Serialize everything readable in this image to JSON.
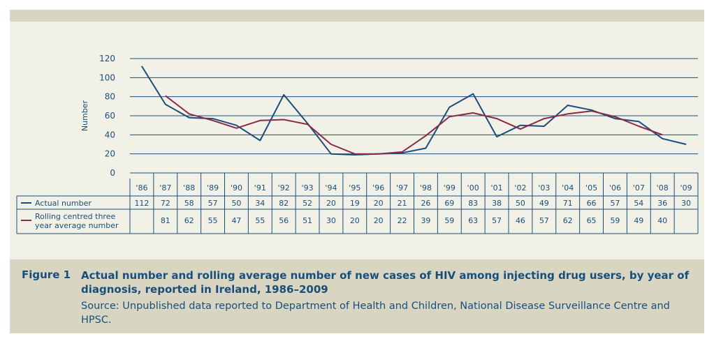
{
  "figure": {
    "label": "Figure 1",
    "title": "Actual number and rolling average number of new cases of HIV among injecting drug users, by year of diagnosis, reported in Ireland, 1986–2009",
    "source": "Source: Unpublished data reported to Department of Health and Children, National Disease Surveillance Centre and HPSC."
  },
  "colors": {
    "actual": "#1a4e7a",
    "rolling": "#8b2a45",
    "grid": "#1a4e7a",
    "text": "#1a4e7a"
  },
  "chart_data": {
    "type": "line",
    "ylabel": "Number",
    "xlabel": "",
    "ylim": [
      0,
      120
    ],
    "yticks": [
      0,
      20,
      40,
      60,
      80,
      100,
      120
    ],
    "categories": [
      "'86",
      "'87",
      "'88",
      "'89",
      "'90",
      "'91",
      "'92",
      "'93",
      "'94",
      "'95",
      "'96",
      "'97",
      "'98",
      "'99",
      "'00",
      "'01",
      "'02",
      "'03",
      "'04",
      "'05",
      "'06",
      "'07",
      "'08",
      "'09"
    ],
    "series": [
      {
        "name": "Actual number",
        "color": "#1a4e7a",
        "values": [
          112,
          72,
          58,
          57,
          50,
          34,
          82,
          52,
          20,
          19,
          20,
          21,
          26,
          69,
          83,
          38,
          50,
          49,
          71,
          66,
          57,
          54,
          36,
          30
        ]
      },
      {
        "name": "Rolling centred three year average number",
        "color": "#8b2a45",
        "values": [
          null,
          81,
          62,
          55,
          47,
          55,
          56,
          51,
          30,
          20,
          20,
          22,
          39,
          59,
          63,
          57,
          46,
          57,
          62,
          65,
          59,
          49,
          40,
          null
        ]
      }
    ],
    "grid": true,
    "legend": "table-below"
  }
}
